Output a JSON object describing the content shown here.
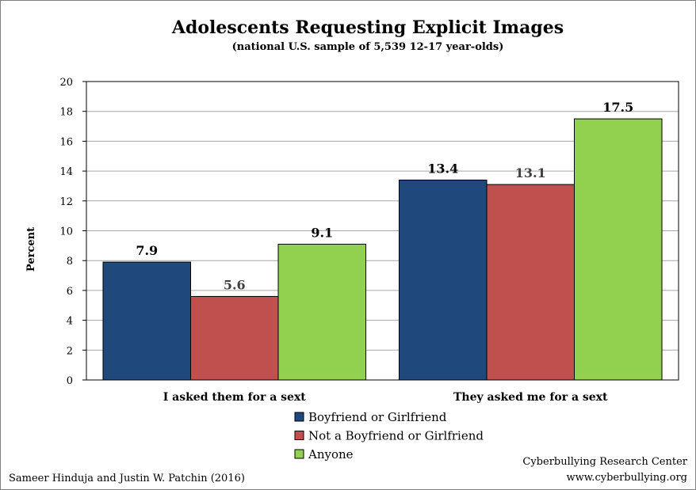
{
  "chart_data": {
    "type": "bar",
    "title": "Adolescents Requesting Explicit Images",
    "subtitle": "(national U.S. sample of 5,539 12-17 year-olds)",
    "xlabel": "",
    "ylabel": "Percent",
    "ylim": [
      0,
      20
    ],
    "yticks": [
      "0",
      "2",
      "4",
      "6",
      "8",
      "10",
      "12",
      "14",
      "16",
      "18",
      "20"
    ],
    "grid": true,
    "legend_position": "bottom",
    "categories": [
      "I asked them for a sext",
      "They asked me for a sext"
    ],
    "series": [
      {
        "name": "Boyfriend or Girlfriend",
        "values": [
          7.9,
          13.4
        ],
        "labels": [
          "7.9",
          "13.4"
        ],
        "color": "#1f497d",
        "label_color": "#000000"
      },
      {
        "name": "Not a Boyfriend or Girlfriend",
        "values": [
          5.6,
          13.1
        ],
        "labels": [
          "5.6",
          "13.1"
        ],
        "color": "#c0504d",
        "label_color": "#404040"
      },
      {
        "name": "Anyone",
        "values": [
          9.1,
          17.5
        ],
        "labels": [
          "9.1",
          "17.5"
        ],
        "color": "#92d050",
        "label_color": "#000000"
      }
    ]
  },
  "footer": {
    "left": "Sameer Hinduja and Justin W. Patchin (2016)",
    "right_line1": "Cyberbullying Research Center",
    "right_line2": "www.cyberbullying.org"
  }
}
